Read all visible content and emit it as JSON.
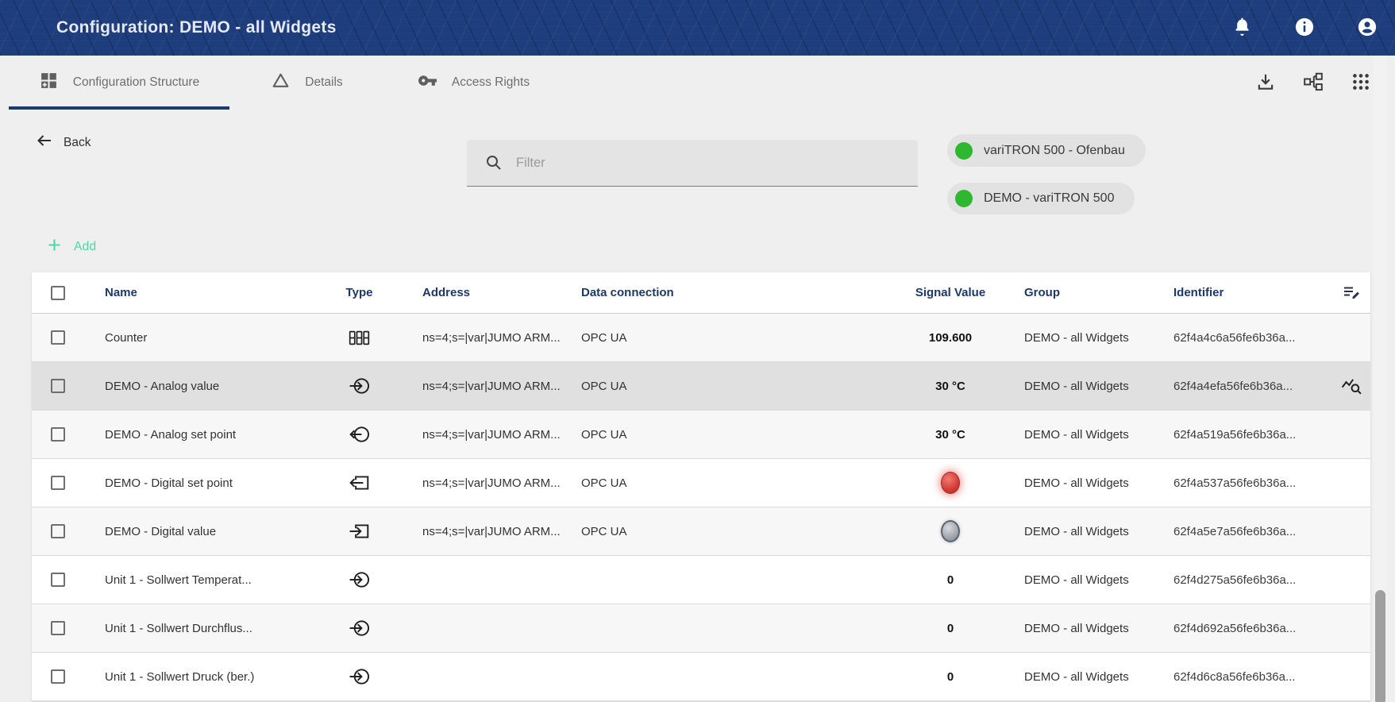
{
  "app": {
    "title": "Configuration: DEMO - all Widgets"
  },
  "tabs": [
    {
      "label": "Configuration Structure",
      "active": true
    },
    {
      "label": "Details",
      "active": false
    },
    {
      "label": "Access Rights",
      "active": false
    }
  ],
  "toolbar": {
    "back_label": "Back",
    "filter_placeholder": "Filter",
    "add_label": "Add"
  },
  "device_chips": [
    {
      "label": "variTRON 500 - Ofenbau",
      "status_color": "#2fb82f"
    },
    {
      "label": "DEMO - variTRON 500",
      "status_color": "#2fb82f"
    }
  ],
  "table": {
    "columns": [
      "Name",
      "Type",
      "Address",
      "Data connection",
      "Signal Value",
      "Group",
      "Identifier"
    ],
    "rows": [
      {
        "name": "Counter",
        "type_icon": "counter-icon",
        "address": "ns=4;s=|var|JUMO ARM...",
        "data_connection": "OPC UA",
        "signal_kind": "text",
        "signal_value": "109.600",
        "group": "DEMO - all Widgets",
        "identifier": "62f4a4c6a56fe6b36a...",
        "selected": false,
        "row_action": null
      },
      {
        "name": "DEMO - Analog value",
        "type_icon": "analog-input-icon",
        "address": "ns=4;s=|var|JUMO ARM...",
        "data_connection": "OPC UA",
        "signal_kind": "text",
        "signal_value": "30 °C",
        "group": "DEMO - all Widgets",
        "identifier": "62f4a4efa56fe6b36a...",
        "selected": true,
        "row_action": "query-stats-icon"
      },
      {
        "name": "DEMO - Analog set point",
        "type_icon": "analog-output-icon",
        "address": "ns=4;s=|var|JUMO ARM...",
        "data_connection": "OPC UA",
        "signal_kind": "text",
        "signal_value": "30 °C",
        "group": "DEMO - all Widgets",
        "identifier": "62f4a519a56fe6b36a...",
        "selected": false,
        "row_action": null
      },
      {
        "name": "DEMO - Digital set point",
        "type_icon": "digital-output-icon",
        "address": "ns=4;s=|var|JUMO ARM...",
        "data_connection": "OPC UA",
        "signal_kind": "indicator-on",
        "signal_value": "on",
        "group": "DEMO - all Widgets",
        "identifier": "62f4a537a56fe6b36a...",
        "selected": false,
        "row_action": null
      },
      {
        "name": "DEMO - Digital value",
        "type_icon": "digital-input-icon",
        "address": "ns=4;s=|var|JUMO ARM...",
        "data_connection": "OPC UA",
        "signal_kind": "indicator-off",
        "signal_value": "off",
        "group": "DEMO - all Widgets",
        "identifier": "62f4a5e7a56fe6b36a...",
        "selected": false,
        "row_action": null
      },
      {
        "name": "Unit 1 - Sollwert Temperat...",
        "type_icon": "analog-input-icon",
        "address": "",
        "data_connection": "",
        "signal_kind": "text",
        "signal_value": "0",
        "group": "DEMO - all Widgets",
        "identifier": "62f4d275a56fe6b36a...",
        "selected": false,
        "row_action": null
      },
      {
        "name": "Unit 1 - Sollwert Durchflus...",
        "type_icon": "analog-input-icon",
        "address": "",
        "data_connection": "",
        "signal_kind": "text",
        "signal_value": "0",
        "group": "DEMO - all Widgets",
        "identifier": "62f4d692a56fe6b36a...",
        "selected": false,
        "row_action": null
      },
      {
        "name": "Unit 1 - Sollwert Druck (ber.)",
        "type_icon": "analog-input-icon",
        "address": "",
        "data_connection": "",
        "signal_kind": "text",
        "signal_value": "0",
        "group": "DEMO - all Widgets",
        "identifier": "62f4d6c8a56fe6b36a...",
        "selected": false,
        "row_action": null
      }
    ]
  },
  "colors": {
    "topbar": "#1e3d7c",
    "accent_teal": "#49d9a8",
    "chip_green": "#2fb82f",
    "indicator_on": "#d23c35",
    "indicator_off": "#9aa1a8",
    "active_tab_underline": "#1c3a6e",
    "header_text": "#1f3864"
  }
}
